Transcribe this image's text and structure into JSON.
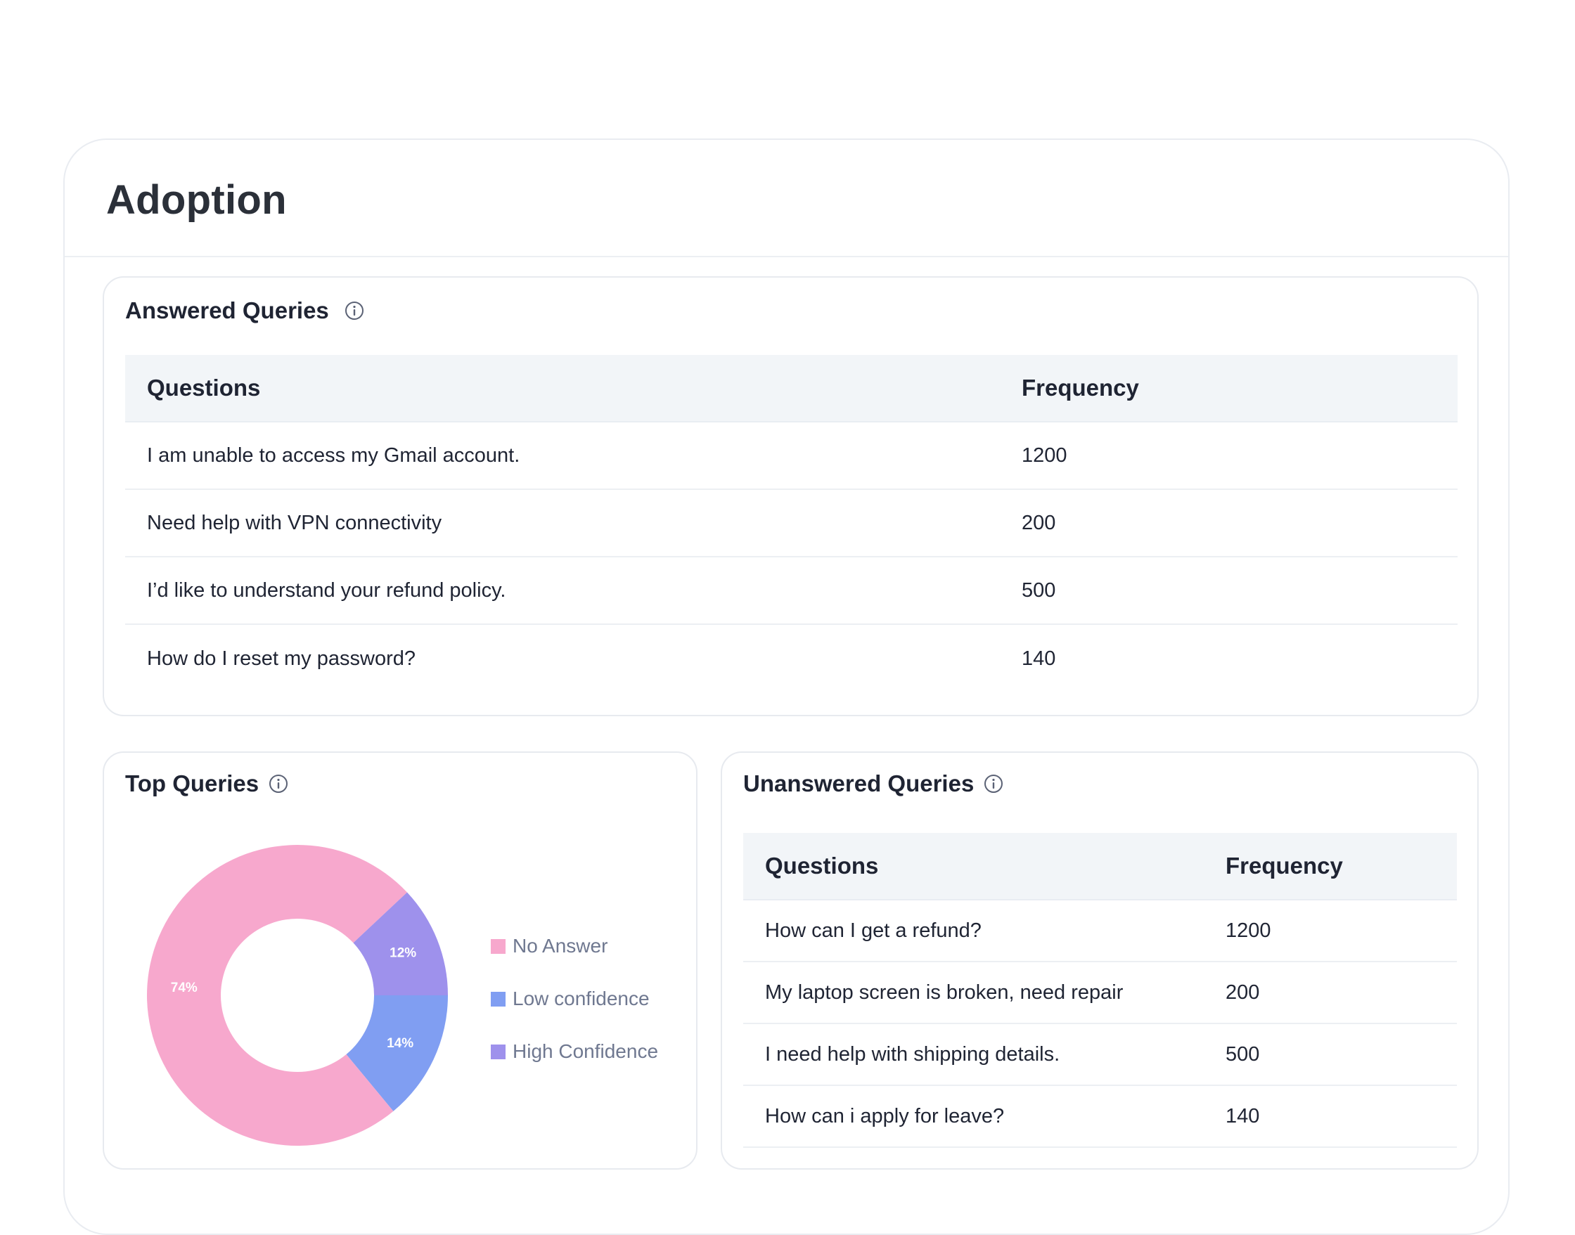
{
  "page": {
    "title": "Adoption"
  },
  "answered": {
    "title": "Answered Queries",
    "columns": [
      "Questions",
      "Frequency"
    ],
    "rows": [
      {
        "question": "I am unable to access my Gmail account.",
        "frequency": "1200"
      },
      {
        "question": "Need help with VPN connectivity",
        "frequency": "200"
      },
      {
        "question": "I’d like to understand your refund policy.",
        "frequency": "500"
      },
      {
        "question": "How do I reset my password?",
        "frequency": "140"
      }
    ]
  },
  "top": {
    "title": "Top Queries",
    "legend": [
      "No Answer",
      "Low confidence",
      "High Confidence"
    ]
  },
  "unanswered": {
    "title": "Unanswered Queries",
    "columns": [
      "Questions",
      "Frequency"
    ],
    "rows": [
      {
        "question": "How can I get a refund?",
        "frequency": "1200"
      },
      {
        "question": "My laptop screen is broken, need repair",
        "frequency": "200"
      },
      {
        "question": "I need help with shipping details.",
        "frequency": "500"
      },
      {
        "question": "How can i apply for leave?",
        "frequency": "140"
      }
    ]
  },
  "icons": {
    "info": "info-circle-icon"
  },
  "chart_data": {
    "type": "pie",
    "categories": [
      "No Answer",
      "Low confidence",
      "High Confidence"
    ],
    "values": [
      74,
      14,
      12
    ],
    "value_labels": [
      "74%",
      "14%",
      "12%"
    ],
    "colors": [
      "#f7a8cd",
      "#809ef2",
      "#9e91ec"
    ],
    "donut": true,
    "legend_position": "right"
  }
}
